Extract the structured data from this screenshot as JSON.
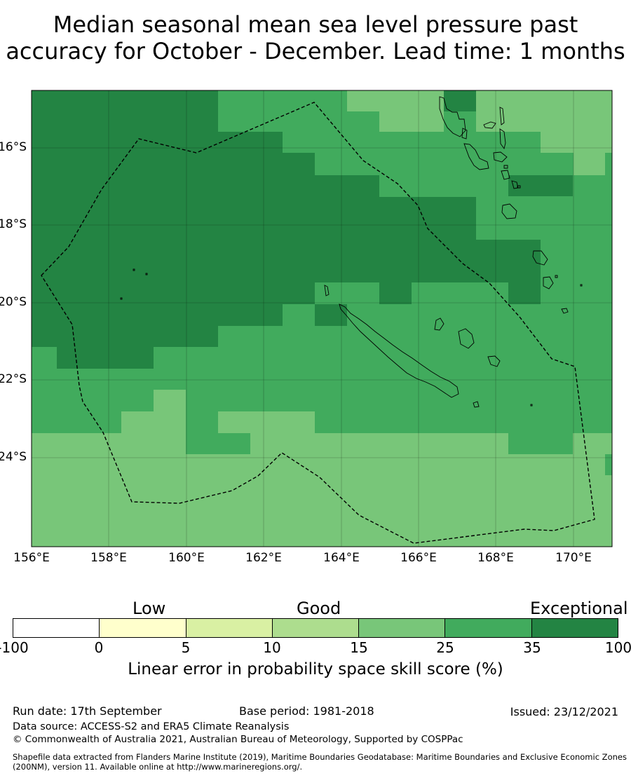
{
  "title": {
    "line1": "Median seasonal mean sea level pressure past",
    "line2": "accuracy for October - December. Lead time: 1 months"
  },
  "map": {
    "lon_labels": [
      "156°E",
      "158°E",
      "160°E",
      "162°E",
      "164°E",
      "166°E",
      "168°E",
      "170°E"
    ],
    "lat_labels": [
      "16°S",
      "18°S",
      "20°S",
      "22°S",
      "24°S"
    ],
    "colors": {
      "very_dark": "#238443",
      "dark": "#41ab5d",
      "medium": "#78c679"
    }
  },
  "colorbar": {
    "categories": [
      "Low",
      "Good",
      "Exceptional"
    ],
    "ticks": [
      "-100",
      "0",
      "5",
      "10",
      "15",
      "25",
      "35",
      "100"
    ],
    "colors": [
      "#ffffff",
      "#ffffcc",
      "#d9f0a3",
      "#addd8e",
      "#78c679",
      "#41ab5d",
      "#238443"
    ],
    "label": "Linear error in probability space skill score (%)"
  },
  "footer": {
    "run_date": "Run date: 17th September",
    "base_period": "Base period: 1981-2018",
    "issued": "Issued: 23/12/2021",
    "data_source": "Data source: ACCESS-S2 and ERA5 Climate Reanalysis",
    "copyright": "© Commonwealth of Australia 2021, Australian Bureau of Meteorology, Supported by COSPPac",
    "shapefile": "Shapefile data extracted from Flanders Marine Institute (2019), Maritime Boundaries Geodatabase: Maritime Boundaries and Exclusive Economic Zones (200NM), version 11. Available online at http://www.marineregions.org/."
  }
}
